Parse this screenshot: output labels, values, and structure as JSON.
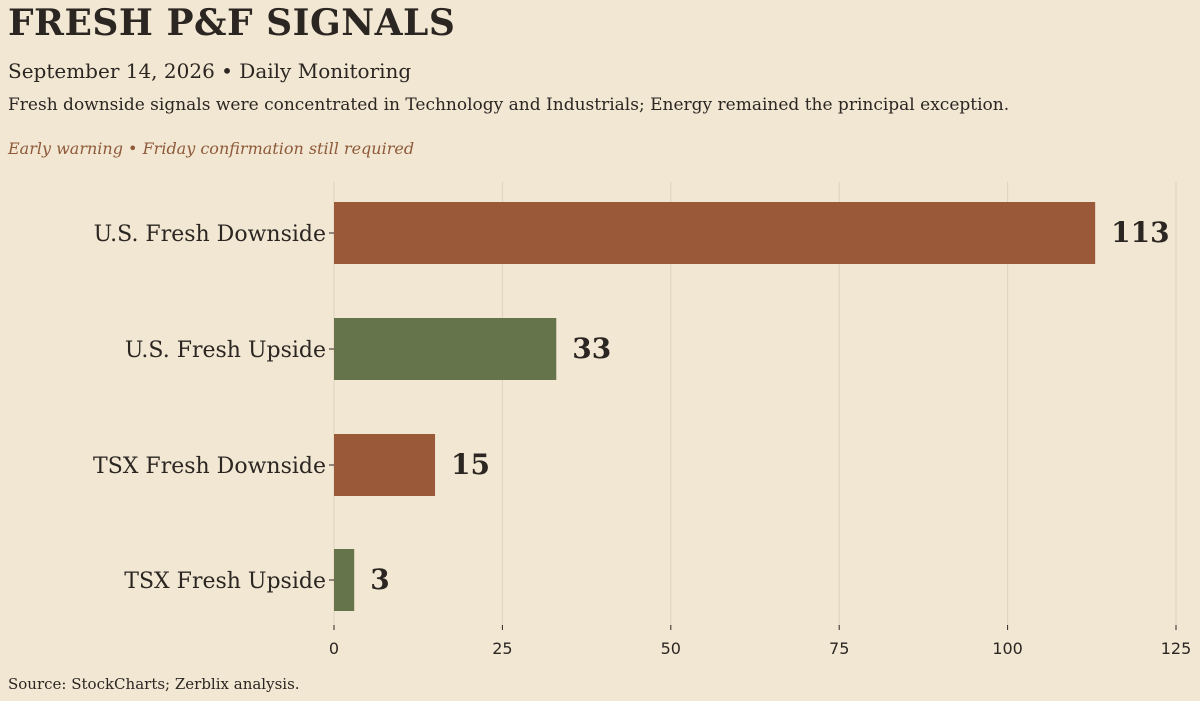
{
  "header": {
    "title": "FRESH P&F SIGNALS",
    "subtitle": "September 14, 2026  •  Daily Monitoring",
    "dek": "Fresh downside signals were concentrated in Technology and Industrials; Energy remained the principal exception.",
    "note": "Early warning • Friday confirmation still required"
  },
  "footer": {
    "source": "Source: StockCharts; Zerblix analysis."
  },
  "colors": {
    "background": "#f2e7d3",
    "downside": "#9a5a3a",
    "upside": "#66744b",
    "note": "#8e5a3a"
  },
  "chart_data": {
    "type": "bar",
    "orientation": "horizontal",
    "categories": [
      "U.S. Fresh Downside",
      "U.S. Fresh Upside",
      "TSX Fresh Downside",
      "TSX Fresh Upside"
    ],
    "values": [
      113,
      33,
      15,
      3
    ],
    "bar_colors": [
      "#9a5a3a",
      "#66744b",
      "#9a5a3a",
      "#66744b"
    ],
    "xlim": [
      0,
      125
    ],
    "xticks": [
      0,
      25,
      50,
      75,
      100,
      125
    ],
    "grid": "vertical",
    "title": "",
    "xlabel": "",
    "ylabel": ""
  }
}
